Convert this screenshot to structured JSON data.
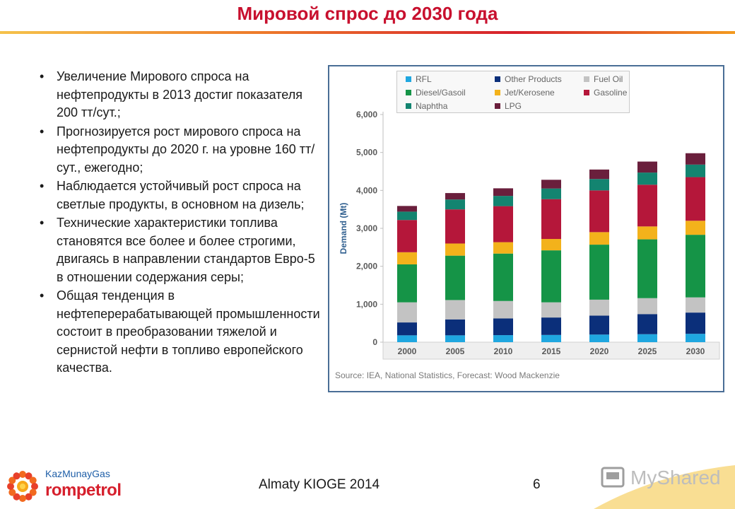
{
  "slide": {
    "title": "Мировой спрос до 2030 года",
    "footer": "Almaty KIOGE 2014",
    "page_number": "6",
    "bullets": [
      "Увеличение Мирового спроса на нефтепродукты в 2013  достиг показателя 200 тт/сут.;",
      "Прогнозируется рост мирового спроса на нефтепродукты до 2020 г. на уровне 160 тт/сут., ежегодно;",
      "Наблюдается устойчивый рост спроса на светлые продукты, в основном на дизель;",
      "Технические характеристики топлива становятся все более и более строгими, двигаясь в направлении стандартов Евро-5 в отношении содержания серы;",
      "Общая тенденция в нефтеперерабатывающей промышленности состоит в преобразовании тяжелой и сернистой нефти в топливо европейского качества."
    ]
  },
  "logo": {
    "line1": "KazMunayGas",
    "line2": "rompetrol"
  },
  "watermark": {
    "text": "MyShared"
  },
  "chart_data": {
    "type": "bar",
    "stacked": true,
    "title": "",
    "xlabel": "",
    "ylabel": "Demand (Mt)",
    "ylim": [
      0,
      6000
    ],
    "yticks": [
      0,
      1000,
      2000,
      3000,
      4000,
      5000,
      6000
    ],
    "ytick_labels": [
      "0",
      "1,000",
      "2,000",
      "3,000",
      "4,000",
      "5,000",
      "6,000"
    ],
    "categories": [
      "2000",
      "2005",
      "2010",
      "2015",
      "2020",
      "2025",
      "2030"
    ],
    "legend_position": "top",
    "source": "Source: IEA, National Statistics, Forecast: Wood Mackenzie",
    "series": [
      {
        "name": "RFL",
        "color": "#1fa7e0",
        "values": [
          180,
          180,
          185,
          190,
          200,
          210,
          220
        ]
      },
      {
        "name": "Other Products",
        "color": "#0b2f7a",
        "values": [
          340,
          420,
          440,
          460,
          500,
          530,
          560
        ]
      },
      {
        "name": "Fuel Oil",
        "color": "#c3c3c3",
        "values": [
          530,
          510,
          460,
          400,
          420,
          420,
          400
        ]
      },
      {
        "name": "Diesel/Gasoil",
        "color": "#159447",
        "values": [
          1000,
          1170,
          1250,
          1370,
          1450,
          1550,
          1650
        ]
      },
      {
        "name": "Jet/Kerosene",
        "color": "#f3b21b",
        "values": [
          320,
          320,
          300,
          300,
          330,
          340,
          370
        ]
      },
      {
        "name": "Gasoline",
        "color": "#b5173a",
        "values": [
          850,
          900,
          950,
          1050,
          1100,
          1100,
          1150
        ]
      },
      {
        "name": "Naphtha",
        "color": "#138470",
        "values": [
          220,
          260,
          270,
          280,
          300,
          320,
          330
        ]
      },
      {
        "name": "LPG",
        "color": "#6a1f3c",
        "values": [
          150,
          170,
          200,
          230,
          250,
          290,
          300
        ]
      }
    ]
  }
}
